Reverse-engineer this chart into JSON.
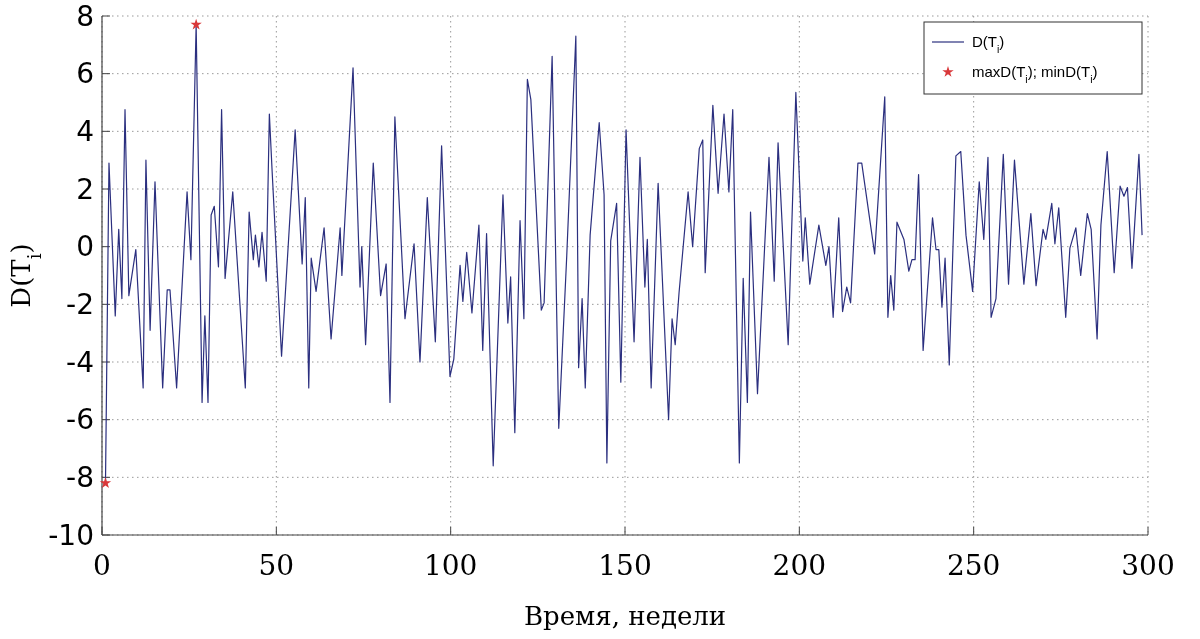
{
  "chart_data": {
    "type": "line",
    "xlabel": "Время, недели",
    "ylabel": "D(T$_{i}$)",
    "xlim": [
      0,
      300
    ],
    "xticks": [
      0,
      50,
      100,
      150,
      200,
      250,
      300
    ],
    "ylim": [
      -10,
      8
    ],
    "yticks": [
      -10,
      -8,
      -6,
      -4,
      -2,
      0,
      2,
      4,
      6,
      8
    ],
    "grid": true,
    "legend": "top right",
    "series": [
      {
        "name": "D(T$_{i}$)",
        "color": "#2b2f7f",
        "line_style": "solid",
        "marker": "none",
        "x": [
          1,
          2,
          3.8,
          4.8,
          5.7,
          6.6,
          7.7,
          9.7,
          11.8,
          12.6,
          13.8,
          15.2,
          17.4,
          18.7,
          19.5,
          21.4,
          24.4,
          25.5,
          27,
          28.7,
          29.5,
          30.4,
          31.3,
          32.2,
          33.4,
          34.3,
          35.3,
          37.5,
          41.1,
          42.2,
          43.4,
          44,
          45,
          45.9,
          47.1,
          48,
          48.8,
          51.5,
          55.4,
          57.4,
          58.3,
          59.3,
          60,
          61.4,
          63.7,
          65.7,
          68.3,
          68.8,
          72,
          74,
          74.5,
          75.6,
          77.8,
          79.9,
          81.5,
          82.6,
          84,
          86.9,
          89.5,
          91.2,
          93.3,
          95.6,
          97.4,
          99.8,
          100.9,
          102.7,
          103.5,
          104.6,
          106.1,
          108.1,
          109.2,
          110.3,
          112.2,
          115,
          116.4,
          117.2,
          118.4,
          119.9,
          121,
          122,
          123,
          126,
          126.8,
          129.1,
          131,
          133.3,
          135.9,
          136.7,
          137.7,
          138.6,
          140,
          142.6,
          144,
          144.8,
          145.9,
          147.6,
          148.8,
          150.3,
          152.6,
          154.3,
          155.7,
          156.4,
          157.5,
          159.5,
          162.5,
          163.5,
          164.4,
          165.5,
          168.1,
          169.4,
          171.3,
          172.3,
          173,
          175.2,
          176.7,
          178.4,
          179.8,
          180.9,
          182.8,
          183.9,
          185.1,
          186,
          188,
          191.3,
          192.8,
          193.9,
          196.8,
          199,
          201,
          201.7,
          203,
          205.6,
          207.6,
          208.5,
          209.7,
          211.3,
          212.4,
          213.6,
          214.7,
          216.8,
          217.9,
          221.6,
          224.5,
          225.4,
          226.2,
          227.1,
          228,
          230,
          231.4,
          232.3,
          233.2,
          234.2,
          235.5,
          238.2,
          239.2,
          240,
          240.9,
          241.8,
          243,
          244.9,
          246.3,
          247.8,
          249.7,
          251.6,
          252.9,
          254.1,
          255,
          256.4,
          258.5,
          260,
          261.7,
          264.4,
          266.4,
          267.9,
          269.9,
          270.7,
          272.4,
          273.3,
          274.4,
          276.4,
          277.6,
          279.3,
          280.7,
          282.6,
          283.7,
          285.4,
          286.5,
          288.3,
          290.3,
          292,
          293.1,
          294.1,
          295.4,
          297.4,
          298.3
        ],
        "values": [
          -8.2,
          2.9,
          -2.4,
          0.6,
          -1.8,
          4.75,
          -1.7,
          -0.1,
          -4.9,
          3,
          -2.9,
          2.25,
          -4.9,
          -1.5,
          -1.5,
          -4.9,
          1.9,
          -0.45,
          7.7,
          -5.4,
          -2.4,
          -5.4,
          1.1,
          1.4,
          -0.7,
          4.75,
          -1.1,
          1.9,
          -4.9,
          1.2,
          -0.45,
          0.4,
          -0.7,
          0.5,
          -1.2,
          4.6,
          2.6,
          -3.8,
          4.05,
          -0.6,
          1.7,
          -4.9,
          -0.4,
          -1.55,
          0.65,
          -3.2,
          0.65,
          -1,
          6.2,
          -1.4,
          0,
          -3.4,
          2.9,
          -1.7,
          -0.6,
          -5.4,
          4.5,
          -2.5,
          0.1,
          -4,
          1.7,
          -3.3,
          3.5,
          -4.5,
          -3.9,
          -0.65,
          -1.9,
          -0.2,
          -2.3,
          0.75,
          -3.6,
          0.45,
          -7.6,
          1.8,
          -2.65,
          -1.05,
          -6.45,
          0.9,
          -2.5,
          5.8,
          5.1,
          -2.2,
          -1.95,
          6.6,
          -6.3,
          -0.3,
          7.3,
          -4.2,
          -1.8,
          -4.9,
          0.4,
          4.3,
          1.8,
          -7.5,
          0.2,
          1.5,
          -4.7,
          4.05,
          -3.3,
          3.1,
          -1.4,
          0.25,
          -4.9,
          2.2,
          -6,
          -2.5,
          -3.4,
          -1.6,
          1.9,
          0,
          3.4,
          3.7,
          -0.9,
          4.9,
          1.85,
          4.6,
          1.9,
          4.75,
          -7.5,
          -1.1,
          -5.4,
          1.2,
          -5.1,
          3.1,
          -1.2,
          3.6,
          -3.4,
          5.35,
          -0.5,
          1,
          -1.3,
          0.75,
          -0.65,
          0,
          -2.45,
          1,
          -2.25,
          -1.4,
          -1.95,
          2.9,
          2.9,
          -0.25,
          5.2,
          -2.45,
          -1,
          -2.2,
          0.85,
          0.25,
          -0.85,
          -0.45,
          -0.45,
          2.5,
          -3.6,
          1,
          -0.1,
          -0.1,
          -2.1,
          -0.4,
          -4.1,
          3.15,
          3.3,
          0.4,
          -1.55,
          2.25,
          0.25,
          3.1,
          -2.45,
          -1.8,
          3.2,
          -1.3,
          3,
          -1.3,
          1.15,
          -1.35,
          0.6,
          0.25,
          1.5,
          0.1,
          1.35,
          -2.45,
          -0.05,
          0.65,
          -1,
          1.15,
          0.6,
          -3.2,
          0.75,
          3.3,
          -0.9,
          2.1,
          1.75,
          2.05,
          -0.75,
          3.2,
          0.4
        ]
      },
      {
        "type": "scatter",
        "name": "maxD(T$_{i}$); minD(T$_{i}$)",
        "color": "#d9383a",
        "marker": "star",
        "x": [
          27,
          1
        ],
        "values": [
          7.7,
          -8.2
        ]
      }
    ]
  }
}
